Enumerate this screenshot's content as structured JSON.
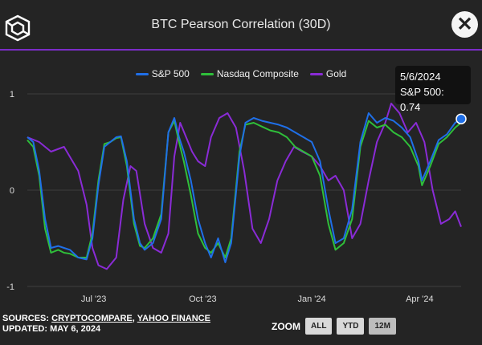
{
  "header": {
    "title": "BTC Pearson Correlation (30D)",
    "close_label": "✕"
  },
  "colors": {
    "sp500": "#1f6fe8",
    "nasdaq": "#2fbf3a",
    "gold": "#8a2bd6",
    "accent_rule": "#7c2cc8",
    "background": "#242424"
  },
  "chart_data": {
    "type": "line",
    "title": "BTC Pearson Correlation (30D)",
    "ylim": [
      -1,
      1
    ],
    "y_ticks": [
      "1",
      "0",
      "-1"
    ],
    "x_range": [
      "2023-05-06",
      "2024-05-06"
    ],
    "x_ticks": [
      {
        "label": "Jul '23",
        "date": "2023-07-01"
      },
      {
        "label": "Oct '23",
        "date": "2023-10-01"
      },
      {
        "label": "Jan '24",
        "date": "2024-01-01"
      },
      {
        "label": "Apr '24",
        "date": "2024-04-01"
      }
    ],
    "grid": "horizontal",
    "legend": "top-center",
    "series": [
      {
        "name": "S&P 500",
        "color_key": "sp500",
        "points": [
          [
            "2023-05-06",
            0.55
          ],
          [
            "2023-05-11",
            0.5
          ],
          [
            "2023-05-16",
            0.2
          ],
          [
            "2023-05-21",
            -0.3
          ],
          [
            "2023-05-26",
            -0.6
          ],
          [
            "2023-06-01",
            -0.58
          ],
          [
            "2023-06-06",
            -0.6
          ],
          [
            "2023-06-11",
            -0.62
          ],
          [
            "2023-06-18",
            -0.7
          ],
          [
            "2023-06-25",
            -0.72
          ],
          [
            "2023-06-30",
            -0.5
          ],
          [
            "2023-07-05",
            0.05
          ],
          [
            "2023-07-10",
            0.45
          ],
          [
            "2023-07-15",
            0.5
          ],
          [
            "2023-07-20",
            0.55
          ],
          [
            "2023-07-24",
            0.56
          ],
          [
            "2023-07-29",
            0.3
          ],
          [
            "2023-08-04",
            -0.3
          ],
          [
            "2023-08-09",
            -0.55
          ],
          [
            "2023-08-13",
            -0.62
          ],
          [
            "2023-08-20",
            -0.55
          ],
          [
            "2023-08-27",
            -0.3
          ],
          [
            "2023-09-02",
            0.6
          ],
          [
            "2023-09-07",
            0.75
          ],
          [
            "2023-09-11",
            0.55
          ],
          [
            "2023-09-15",
            0.4
          ],
          [
            "2023-09-21",
            0.1
          ],
          [
            "2023-09-27",
            -0.3
          ],
          [
            "2023-10-03",
            -0.55
          ],
          [
            "2023-10-08",
            -0.7
          ],
          [
            "2023-10-14",
            -0.5
          ],
          [
            "2023-10-20",
            -0.75
          ],
          [
            "2023-10-25",
            -0.55
          ],
          [
            "2023-11-01",
            0.35
          ],
          [
            "2023-11-06",
            0.7
          ],
          [
            "2023-11-13",
            0.75
          ],
          [
            "2023-11-20",
            0.72
          ],
          [
            "2023-11-27",
            0.7
          ],
          [
            "2023-12-04",
            0.68
          ],
          [
            "2023-12-11",
            0.65
          ],
          [
            "2023-12-18",
            0.6
          ],
          [
            "2023-12-25",
            0.55
          ],
          [
            "2024-01-01",
            0.5
          ],
          [
            "2024-01-08",
            0.3
          ],
          [
            "2024-01-15",
            -0.2
          ],
          [
            "2024-01-21",
            -0.55
          ],
          [
            "2024-01-28",
            -0.5
          ],
          [
            "2024-02-04",
            -0.2
          ],
          [
            "2024-02-11",
            0.5
          ],
          [
            "2024-02-18",
            0.8
          ],
          [
            "2024-02-25",
            0.7
          ],
          [
            "2024-03-03",
            0.75
          ],
          [
            "2024-03-10",
            0.72
          ],
          [
            "2024-03-17",
            0.65
          ],
          [
            "2024-03-24",
            0.55
          ],
          [
            "2024-03-31",
            0.3
          ],
          [
            "2024-04-03",
            0.1
          ],
          [
            "2024-04-10",
            0.3
          ],
          [
            "2024-04-17",
            0.52
          ],
          [
            "2024-04-24",
            0.58
          ],
          [
            "2024-05-01",
            0.7
          ],
          [
            "2024-05-06",
            0.74
          ]
        ]
      },
      {
        "name": "Nasdaq Composite",
        "color_key": "nasdaq",
        "points": [
          [
            "2023-05-06",
            0.52
          ],
          [
            "2023-05-11",
            0.45
          ],
          [
            "2023-05-16",
            0.15
          ],
          [
            "2023-05-21",
            -0.4
          ],
          [
            "2023-05-26",
            -0.65
          ],
          [
            "2023-06-01",
            -0.62
          ],
          [
            "2023-06-06",
            -0.65
          ],
          [
            "2023-06-11",
            -0.66
          ],
          [
            "2023-06-18",
            -0.7
          ],
          [
            "2023-06-25",
            -0.7
          ],
          [
            "2023-06-30",
            -0.45
          ],
          [
            "2023-07-05",
            0.1
          ],
          [
            "2023-07-10",
            0.48
          ],
          [
            "2023-07-15",
            0.5
          ],
          [
            "2023-07-20",
            0.54
          ],
          [
            "2023-07-24",
            0.55
          ],
          [
            "2023-07-29",
            0.25
          ],
          [
            "2023-08-04",
            -0.35
          ],
          [
            "2023-08-09",
            -0.58
          ],
          [
            "2023-08-13",
            -0.6
          ],
          [
            "2023-08-20",
            -0.5
          ],
          [
            "2023-08-27",
            -0.25
          ],
          [
            "2023-09-02",
            0.6
          ],
          [
            "2023-09-07",
            0.72
          ],
          [
            "2023-09-11",
            0.5
          ],
          [
            "2023-09-15",
            0.3
          ],
          [
            "2023-09-21",
            -0.05
          ],
          [
            "2023-09-27",
            -0.45
          ],
          [
            "2023-10-03",
            -0.6
          ],
          [
            "2023-10-08",
            -0.65
          ],
          [
            "2023-10-14",
            -0.55
          ],
          [
            "2023-10-20",
            -0.7
          ],
          [
            "2023-10-25",
            -0.5
          ],
          [
            "2023-11-01",
            0.4
          ],
          [
            "2023-11-06",
            0.68
          ],
          [
            "2023-11-13",
            0.7
          ],
          [
            "2023-11-20",
            0.66
          ],
          [
            "2023-11-27",
            0.62
          ],
          [
            "2023-12-04",
            0.6
          ],
          [
            "2023-12-11",
            0.55
          ],
          [
            "2023-12-18",
            0.45
          ],
          [
            "2023-12-25",
            0.4
          ],
          [
            "2024-01-01",
            0.35
          ],
          [
            "2024-01-08",
            0.15
          ],
          [
            "2024-01-15",
            -0.35
          ],
          [
            "2024-01-21",
            -0.62
          ],
          [
            "2024-01-28",
            -0.55
          ],
          [
            "2024-02-04",
            -0.3
          ],
          [
            "2024-02-11",
            0.45
          ],
          [
            "2024-02-18",
            0.72
          ],
          [
            "2024-02-25",
            0.65
          ],
          [
            "2024-03-03",
            0.68
          ],
          [
            "2024-03-10",
            0.6
          ],
          [
            "2024-03-17",
            0.55
          ],
          [
            "2024-03-24",
            0.45
          ],
          [
            "2024-03-31",
            0.25
          ],
          [
            "2024-04-03",
            0.05
          ],
          [
            "2024-04-10",
            0.25
          ],
          [
            "2024-04-17",
            0.48
          ],
          [
            "2024-04-24",
            0.55
          ],
          [
            "2024-05-01",
            0.65
          ],
          [
            "2024-05-06",
            0.7
          ]
        ]
      },
      {
        "name": "Gold",
        "color_key": "gold",
        "points": [
          [
            "2023-05-06",
            0.55
          ],
          [
            "2023-05-16",
            0.5
          ],
          [
            "2023-05-26",
            0.4
          ],
          [
            "2023-06-06",
            0.45
          ],
          [
            "2023-06-18",
            0.2
          ],
          [
            "2023-06-25",
            -0.15
          ],
          [
            "2023-06-30",
            -0.6
          ],
          [
            "2023-07-05",
            -0.78
          ],
          [
            "2023-07-12",
            -0.82
          ],
          [
            "2023-07-20",
            -0.7
          ],
          [
            "2023-07-26",
            -0.1
          ],
          [
            "2023-08-01",
            0.25
          ],
          [
            "2023-08-06",
            0.2
          ],
          [
            "2023-08-13",
            -0.35
          ],
          [
            "2023-08-20",
            -0.6
          ],
          [
            "2023-08-27",
            -0.65
          ],
          [
            "2023-09-02",
            -0.45
          ],
          [
            "2023-09-07",
            0.35
          ],
          [
            "2023-09-12",
            0.7
          ],
          [
            "2023-09-17",
            0.55
          ],
          [
            "2023-09-22",
            0.4
          ],
          [
            "2023-09-27",
            0.3
          ],
          [
            "2023-10-03",
            0.25
          ],
          [
            "2023-10-08",
            0.55
          ],
          [
            "2023-10-15",
            0.75
          ],
          [
            "2023-10-22",
            0.8
          ],
          [
            "2023-10-29",
            0.65
          ],
          [
            "2023-11-05",
            0.2
          ],
          [
            "2023-11-12",
            -0.4
          ],
          [
            "2023-11-19",
            -0.55
          ],
          [
            "2023-11-26",
            -0.3
          ],
          [
            "2023-12-03",
            0.1
          ],
          [
            "2023-12-10",
            0.3
          ],
          [
            "2023-12-17",
            0.45
          ],
          [
            "2023-12-24",
            0.4
          ],
          [
            "2024-01-01",
            0.35
          ],
          [
            "2024-01-08",
            0.25
          ],
          [
            "2024-01-15",
            0.1
          ],
          [
            "2024-01-21",
            0.15
          ],
          [
            "2024-01-28",
            0.0
          ],
          [
            "2024-02-04",
            -0.5
          ],
          [
            "2024-02-11",
            -0.35
          ],
          [
            "2024-02-18",
            0.1
          ],
          [
            "2024-02-25",
            0.5
          ],
          [
            "2024-03-03",
            0.7
          ],
          [
            "2024-03-08",
            0.9
          ],
          [
            "2024-03-15",
            0.8
          ],
          [
            "2024-03-22",
            0.6
          ],
          [
            "2024-03-29",
            0.7
          ],
          [
            "2024-04-05",
            0.5
          ],
          [
            "2024-04-12",
            0.0
          ],
          [
            "2024-04-19",
            -0.35
          ],
          [
            "2024-04-26",
            -0.3
          ],
          [
            "2024-05-01",
            -0.22
          ],
          [
            "2024-05-06",
            -0.38
          ]
        ]
      }
    ],
    "tooltip": {
      "date": "5/6/2024",
      "text": "S&P 500: 0.74",
      "date_iso": "2024-05-06",
      "value": 0.74
    }
  },
  "footer": {
    "sources_prefix": "SOURCES: ",
    "source_1": "CRYPTOCOMPARE",
    "separator": ", ",
    "source_2": "YAHOO FINANCE",
    "updated": "UPDATED: MAY 6, 2024"
  },
  "zoom": {
    "label": "ZOOM",
    "buttons": [
      "ALL",
      "YTD",
      "12M"
    ]
  }
}
